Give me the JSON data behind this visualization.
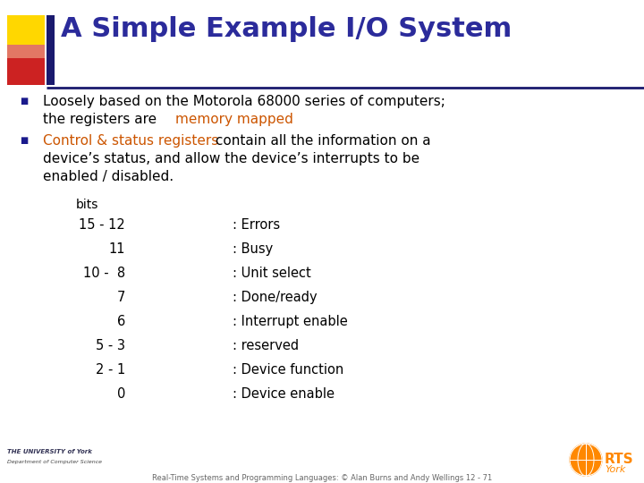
{
  "title": "A Simple Example I/O System",
  "title_color": "#2B2B9B",
  "bg_color": "#FFFFFF",
  "bullet1_line1": "Loosely based on the Motorola 68000 series of computers;",
  "bullet1_line2a": "the registers are ",
  "bullet1_highlight": "memory mapped",
  "bullet1_highlight_color": "#CC5500",
  "bullet2_highlight": "Control & status registers",
  "bullet2_highlight_color": "#CC5500",
  "bullet2_line1b": " contain all the information on a",
  "bullet2_line2": "device’s status, and allow the device’s interrupts to be",
  "bullet2_line3": "enabled / disabled.",
  "bullet_color": "#000000",
  "bullet_marker_color": "#1A1A8C",
  "table_header": "bits",
  "table_rows_bits": [
    "15 - 12",
    "11",
    "10 -  8",
    "7",
    "6",
    "5 - 3",
    "2 - 1",
    "0"
  ],
  "table_rows_desc": [
    ": Errors",
    ": Busy",
    ": Unit select",
    ": Done/ready",
    ": Interrupt enable",
    ": reserved",
    ": Device function",
    ": Device enable"
  ],
  "table_color": "#000000",
  "footer_text": "Real-Time Systems and Programming Languages: © Alan Burns and Andy Wellings 12 - 71",
  "footer_color": "#666666",
  "header_bar_color": "#1A1A6E",
  "header_accent_yellow": "#FFD700",
  "header_accent_red": "#CC2222",
  "header_accent_pink": "#DD6677"
}
